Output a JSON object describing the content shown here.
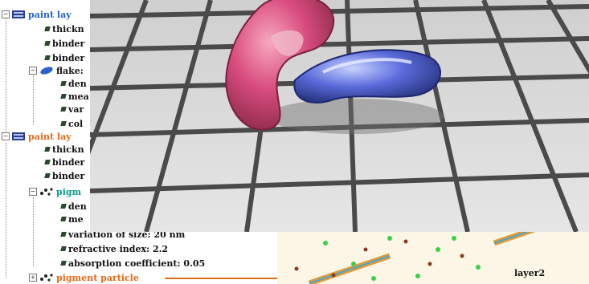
{
  "tree": {
    "layer1_label": "paint lay",
    "thickness_1": "thickn",
    "binder_1a": "binder",
    "binder_1b": "binder",
    "flake_label": "flake:",
    "flake_den": "den",
    "flake_mea": "mea",
    "flake_var": "var",
    "flake_col": "col",
    "layer2_label": "paint lay",
    "thickness_2": "thickn",
    "binder_2a": "binder",
    "binder_2b": "binder",
    "pigment_label": "pigm",
    "pig_den": "den",
    "pig_me": "me",
    "variation": "variation of size: 20 nm",
    "refractive": "refractive index: 2.2",
    "absorption": "absorption coefficient: 0.05",
    "pigment_particle": "pigment particle"
  },
  "diagram": {
    "caption": "layer2"
  },
  "colors": {
    "blue": "#1e63c8",
    "orange": "#e36a16",
    "teal": "#0a9a8a"
  }
}
